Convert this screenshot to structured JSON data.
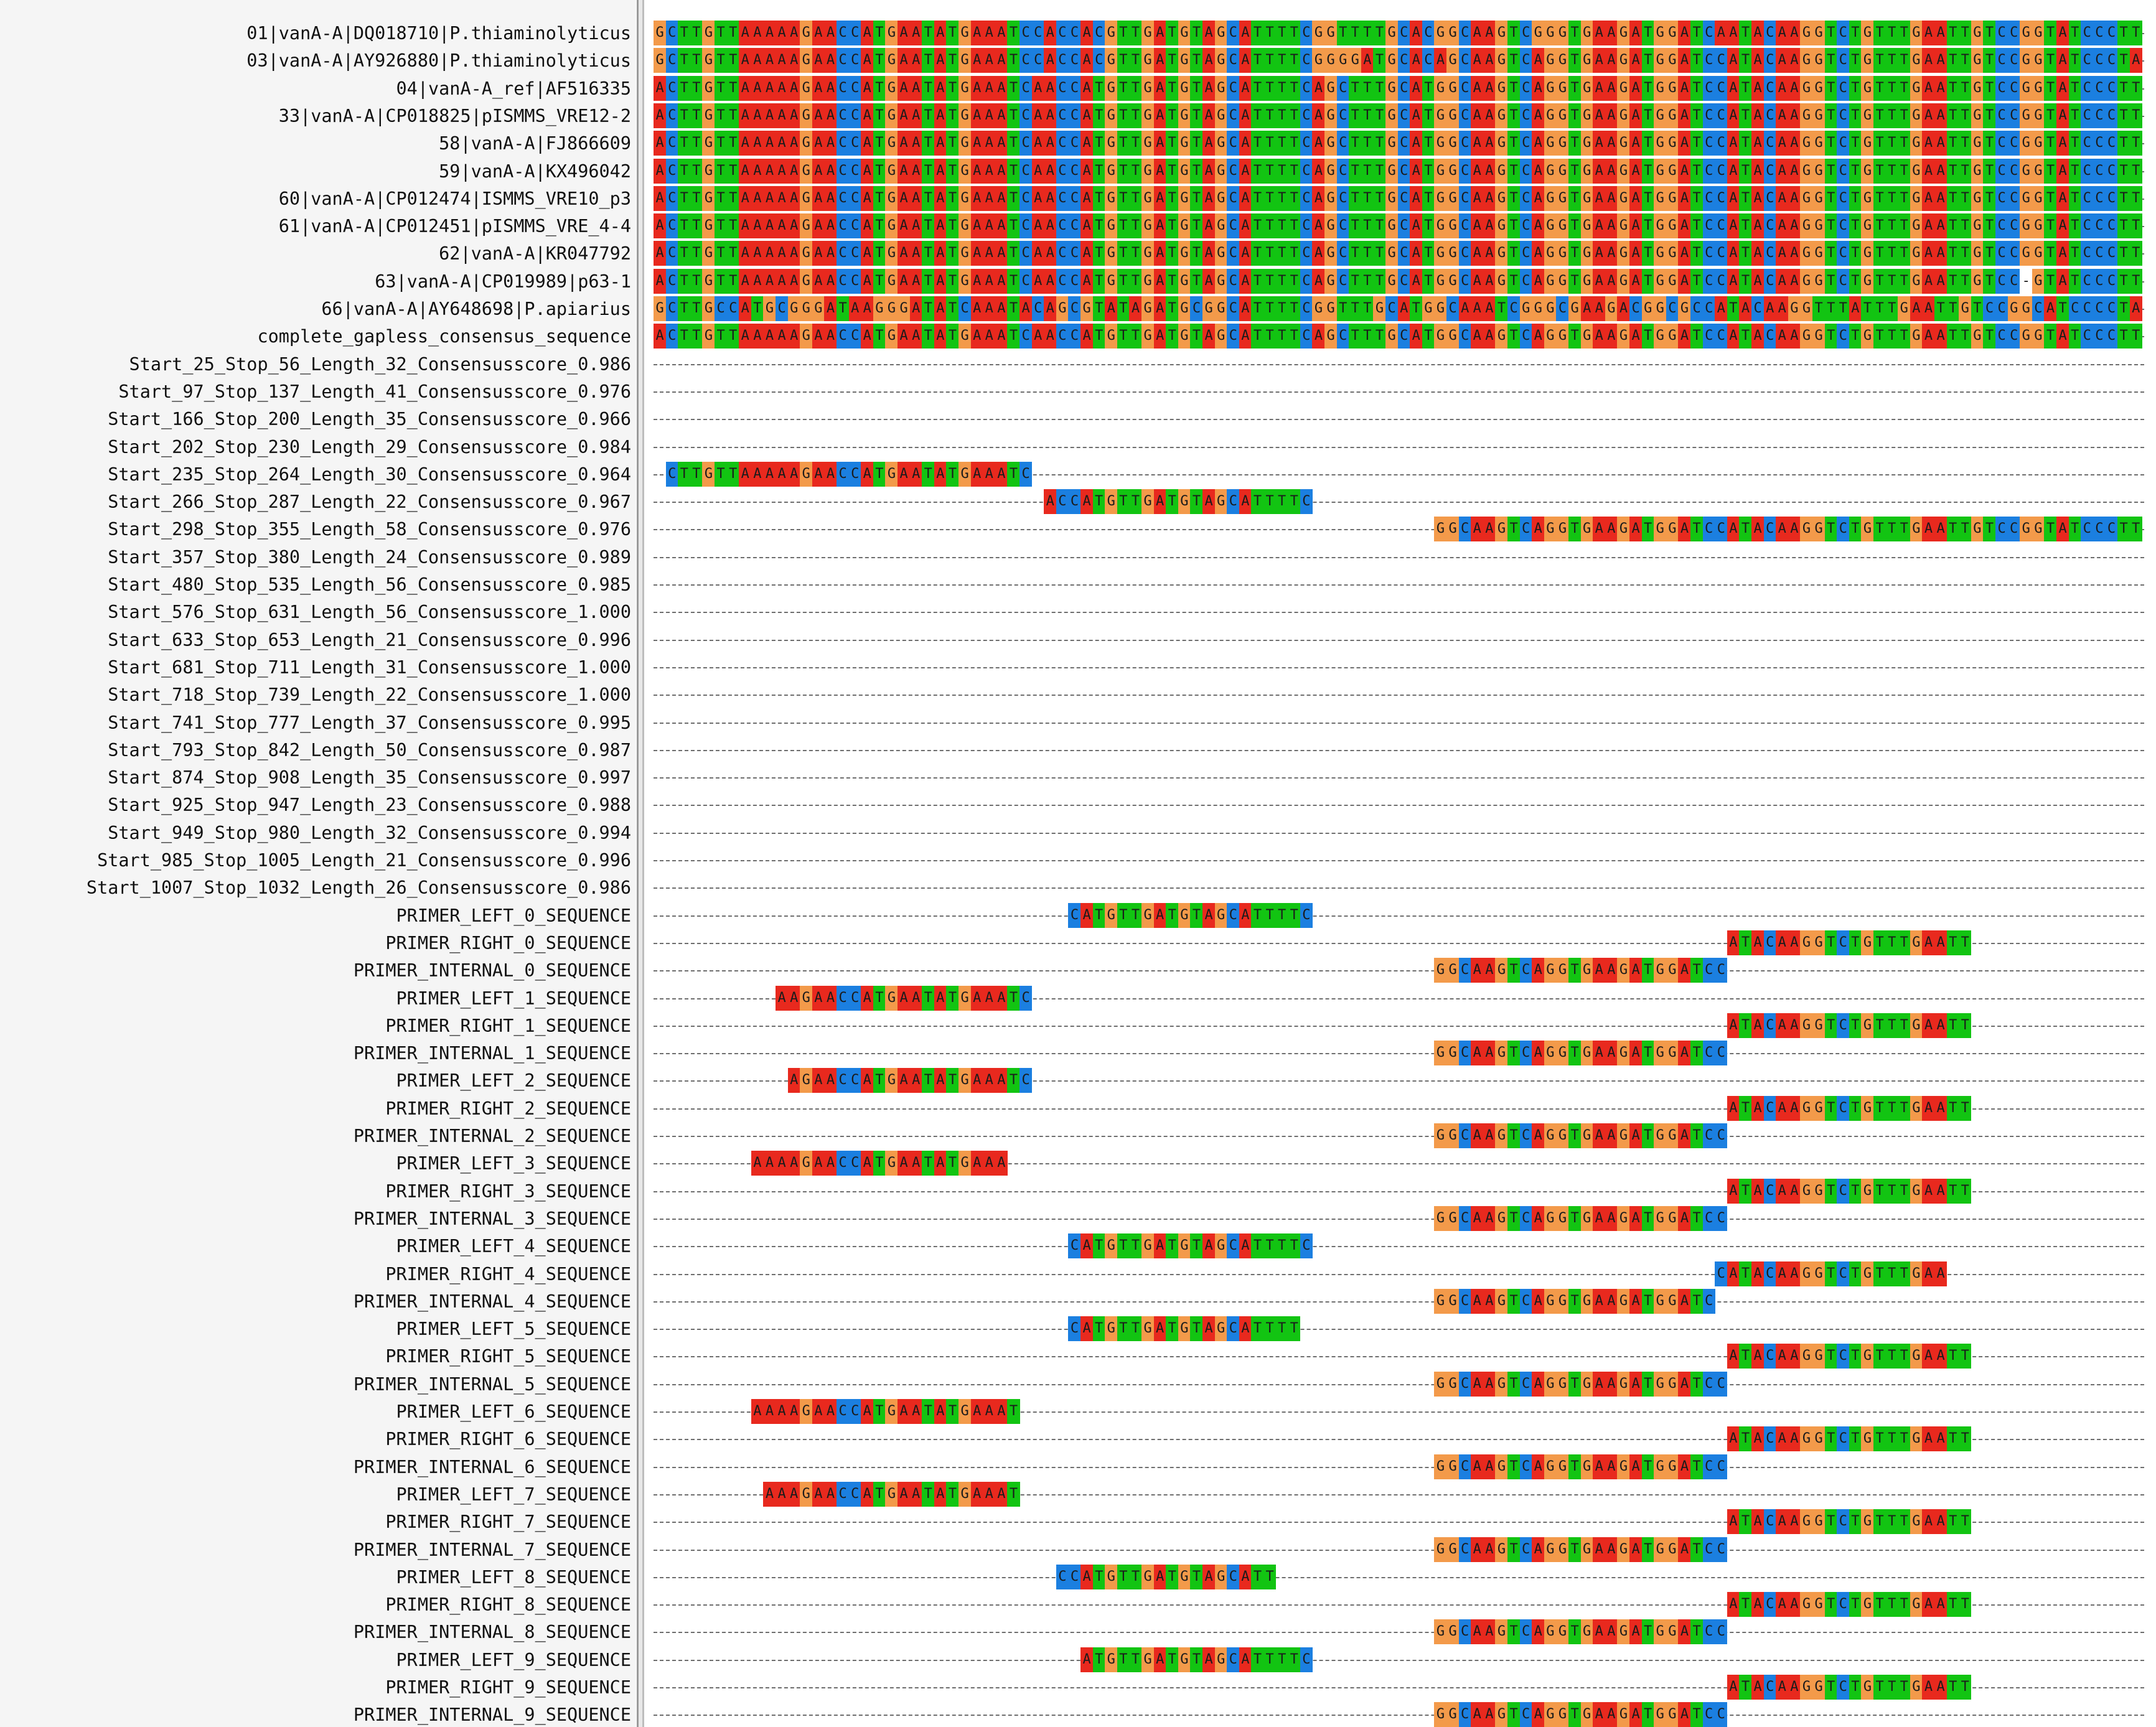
{
  "colors": {
    "A": "#e8291e",
    "C": "#1b7fe0",
    "G": "#f39a4a",
    "T": "#12c412",
    "gap": "#ffffff",
    "name_panel_bg": "#f5f5f5"
  },
  "alignment": {
    "total_columns": 123,
    "rows": [
      {
        "name": "01|vanA-A|DQ018710|P.thiaminolyticus",
        "start": 0,
        "seq": "GCTTGTTAAAAAGAACCATGAATATGAAATCCACCACGTTGATGTAGCATTTTCGGTTTTGCACGGCAAGTCGGGTGAAGATGGATCAATACAAGGTCTGTTTGAATTGTCCGGTATCCCTT"
      },
      {
        "name": "03|vanA-A|AY926880|P.thiaminolyticus",
        "start": 0,
        "seq": "GCTTGTTAAAAAGAACCATGAATATGAAATCCACCACGTTGATGTAGCATTTTCGGGGATGCACAGCAAGTCAGGTGAAGATGGATCCATACAAGGTCTGTTTGAATTGTCCGGTATCCCTA"
      },
      {
        "name": "04|vanA-A_ref|AF516335",
        "start": 0,
        "seq": "ACTTGTTAAAAAGAACCATGAATATGAAATCAACCATGTTGATGTAGCATTTTCAGCTTTGCATGGCAAGTCAGGTGAAGATGGATCCATACAAGGTCTGTTTGAATTGTCCGGTATCCCTT"
      },
      {
        "name": "33|vanA-A|CP018825|pISMMS_VRE12-2",
        "start": 0,
        "seq": "ACTTGTTAAAAAGAACCATGAATATGAAATCAACCATGTTGATGTAGCATTTTCAGCTTTGCATGGCAAGTCAGGTGAAGATGGATCCATACAAGGTCTGTTTGAATTGTCCGGTATCCCTT"
      },
      {
        "name": "58|vanA-A|FJ866609",
        "start": 0,
        "seq": "ACTTGTTAAAAAGAACCATGAATATGAAATCAACCATGTTGATGTAGCATTTTCAGCTTTGCATGGCAAGTCAGGTGAAGATGGATCCATACAAGGTCTGTTTGAATTGTCCGGTATCCCTT"
      },
      {
        "name": "59|vanA-A|KX496042",
        "start": 0,
        "seq": "ACTTGTTAAAAAGAACCATGAATATGAAATCAACCATGTTGATGTAGCATTTTCAGCTTTGCATGGCAAGTCAGGTGAAGATGGATCCATACAAGGTCTGTTTGAATTGTCCGGTATCCCTT"
      },
      {
        "name": "60|vanA-A|CP012474|ISMMS_VRE10_p3",
        "start": 0,
        "seq": "ACTTGTTAAAAAGAACCATGAATATGAAATCAACCATGTTGATGTAGCATTTTCAGCTTTGCATGGCAAGTCAGGTGAAGATGGATCCATACAAGGTCTGTTTGAATTGTCCGGTATCCCTT"
      },
      {
        "name": "61|vanA-A|CP012451|pISMMS_VRE_4-4",
        "start": 0,
        "seq": "ACTTGTTAAAAAGAACCATGAATATGAAATCAACCATGTTGATGTAGCATTTTCAGCTTTGCATGGCAAGTCAGGTGAAGATGGATCCATACAAGGTCTGTTTGAATTGTCCGGTATCCCTT"
      },
      {
        "name": "62|vanA-A|KR047792",
        "start": 0,
        "seq": "ACTTGTTAAAAAGAACCATGAATATGAAATCAACCATGTTGATGTAGCATTTTCAGCTTTGCATGGCAAGTCAGGTGAAGATGGATCCATACAAGGTCTGTTTGAATTGTCCGGTATCCCTT"
      },
      {
        "name": "63|vanA-A|CP019989|p63-1",
        "start": 0,
        "seq": "ACTTGTTAAAAAGAACCATGAATATGAAATCAACCATGTTGATGTAGCATTTTCAGCTTTGCATGGCAAGTCAGGTGAAGATGGATCCATACAAGGTCTGTTTGAATTGTCC-GTATCCCTT"
      },
      {
        "name": "66|vanA-A|AY648698|P.apiarius",
        "start": 0,
        "seq": "GCTTGCCATGCGGGATAAGGGATATCAAATACAGCGTATAGATGCGGCATTTTCGGTTTGCATGGCAAATCGGGCGAAGACGGCGCCATACAAGGTTTATTTGAATTGTCCGGCATCCCCTA"
      },
      {
        "name": "complete_gapless_consensus_sequence",
        "start": 0,
        "seq": "ACTTGTTAAAAAGAACCATGAATATGAAATCAACCATGTTGATGTAGCATTTTCAGCTTTGCATGGCAAGTCAGGTGAAGATGGATCCATACAAGGTCTGTTTGAATTGTCCGGTATCCCTT"
      },
      {
        "name": "Start_25_Stop_56_Length_32_Consensusscore_0.986",
        "start": 0,
        "seq": ""
      },
      {
        "name": "Start_97_Stop_137_Length_41_Consensusscore_0.976",
        "start": 0,
        "seq": ""
      },
      {
        "name": "Start_166_Stop_200_Length_35_Consensusscore_0.966",
        "start": 0,
        "seq": ""
      },
      {
        "name": "Start_202_Stop_230_Length_29_Consensusscore_0.984",
        "start": 0,
        "seq": ""
      },
      {
        "name": "Start_235_Stop_264_Length_30_Consensusscore_0.964",
        "start": 1,
        "seq": "CTTGTTAAAAAGAACCATGAATATGAAATC"
      },
      {
        "name": "Start_266_Stop_287_Length_22_Consensusscore_0.967",
        "start": 32,
        "seq": "ACCATGTTGATGTAGCATTTTC"
      },
      {
        "name": "Start_298_Stop_355_Length_58_Consensusscore_0.976",
        "start": 64,
        "seq": "GGCAAGTCAGGTGAAGATGGATCCATACAAGGTCTGTTTGAATTGTCCGGTATCCCTT"
      },
      {
        "name": "Start_357_Stop_380_Length_24_Consensusscore_0.989",
        "start": 0,
        "seq": ""
      },
      {
        "name": "Start_480_Stop_535_Length_56_Consensusscore_0.985",
        "start": 0,
        "seq": ""
      },
      {
        "name": "Start_576_Stop_631_Length_56_Consensusscore_1.000",
        "start": 0,
        "seq": ""
      },
      {
        "name": "Start_633_Stop_653_Length_21_Consensusscore_0.996",
        "start": 0,
        "seq": ""
      },
      {
        "name": "Start_681_Stop_711_Length_31_Consensusscore_1.000",
        "start": 0,
        "seq": ""
      },
      {
        "name": "Start_718_Stop_739_Length_22_Consensusscore_1.000",
        "start": 0,
        "seq": ""
      },
      {
        "name": "Start_741_Stop_777_Length_37_Consensusscore_0.995",
        "start": 0,
        "seq": ""
      },
      {
        "name": "Start_793_Stop_842_Length_50_Consensusscore_0.987",
        "start": 0,
        "seq": ""
      },
      {
        "name": "Start_874_Stop_908_Length_35_Consensusscore_0.997",
        "start": 0,
        "seq": ""
      },
      {
        "name": "Start_925_Stop_947_Length_23_Consensusscore_0.988",
        "start": 0,
        "seq": ""
      },
      {
        "name": "Start_949_Stop_980_Length_32_Consensusscore_0.994",
        "start": 0,
        "seq": ""
      },
      {
        "name": "Start_985_Stop_1005_Length_21_Consensusscore_0.996",
        "start": 0,
        "seq": ""
      },
      {
        "name": "Start_1007_Stop_1032_Length_26_Consensusscore_0.986",
        "start": 0,
        "seq": ""
      },
      {
        "name": "PRIMER_LEFT_0_SEQUENCE",
        "start": 34,
        "seq": "CATGTTGATGTAGCATTTTC"
      },
      {
        "name": "PRIMER_RIGHT_0_SEQUENCE",
        "start": 88,
        "seq": "ATACAAGGTCTGTTTGAATT"
      },
      {
        "name": "PRIMER_INTERNAL_0_SEQUENCE",
        "start": 64,
        "seq": "GGCAAGTCAGGTGAAGATGGATCC"
      },
      {
        "name": "PRIMER_LEFT_1_SEQUENCE",
        "start": 10,
        "seq": "AAGAACCATGAATATGAAATC"
      },
      {
        "name": "PRIMER_RIGHT_1_SEQUENCE",
        "start": 88,
        "seq": "ATACAAGGTCTGTTTGAATT"
      },
      {
        "name": "PRIMER_INTERNAL_1_SEQUENCE",
        "start": 64,
        "seq": "GGCAAGTCAGGTGAAGATGGATCC"
      },
      {
        "name": "PRIMER_LEFT_2_SEQUENCE",
        "start": 11,
        "seq": "AGAACCATGAATATGAAATC"
      },
      {
        "name": "PRIMER_RIGHT_2_SEQUENCE",
        "start": 88,
        "seq": "ATACAAGGTCTGTTTGAATT"
      },
      {
        "name": "PRIMER_INTERNAL_2_SEQUENCE",
        "start": 64,
        "seq": "GGCAAGTCAGGTGAAGATGGATCC"
      },
      {
        "name": "PRIMER_LEFT_3_SEQUENCE",
        "start": 8,
        "seq": "AAAAGAACCATGAATATGAAA"
      },
      {
        "name": "PRIMER_RIGHT_3_SEQUENCE",
        "start": 88,
        "seq": "ATACAAGGTCTGTTTGAATT"
      },
      {
        "name": "PRIMER_INTERNAL_3_SEQUENCE",
        "start": 64,
        "seq": "GGCAAGTCAGGTGAAGATGGATCC"
      },
      {
        "name": "PRIMER_LEFT_4_SEQUENCE",
        "start": 34,
        "seq": "CATGTTGATGTAGCATTTTC"
      },
      {
        "name": "PRIMER_RIGHT_4_SEQUENCE",
        "start": 87,
        "seq": "CATACAAGGTCTGTTTGAA"
      },
      {
        "name": "PRIMER_INTERNAL_4_SEQUENCE",
        "start": 64,
        "seq": "GGCAAGTCAGGTGAAGATGGATC"
      },
      {
        "name": "PRIMER_LEFT_5_SEQUENCE",
        "start": 34,
        "seq": "CATGTTGATGTAGCATTTT"
      },
      {
        "name": "PRIMER_RIGHT_5_SEQUENCE",
        "start": 88,
        "seq": "ATACAAGGTCTGTTTGAATT"
      },
      {
        "name": "PRIMER_INTERNAL_5_SEQUENCE",
        "start": 64,
        "seq": "GGCAAGTCAGGTGAAGATGGATCC"
      },
      {
        "name": "PRIMER_LEFT_6_SEQUENCE",
        "start": 8,
        "seq": "AAAAGAACCATGAATATGAAAT"
      },
      {
        "name": "PRIMER_RIGHT_6_SEQUENCE",
        "start": 88,
        "seq": "ATACAAGGTCTGTTTGAATT"
      },
      {
        "name": "PRIMER_INTERNAL_6_SEQUENCE",
        "start": 64,
        "seq": "GGCAAGTCAGGTGAAGATGGATCC"
      },
      {
        "name": "PRIMER_LEFT_7_SEQUENCE",
        "start": 9,
        "seq": "AAAGAACCATGAATATGAAAT"
      },
      {
        "name": "PRIMER_RIGHT_7_SEQUENCE",
        "start": 88,
        "seq": "ATACAAGGTCTGTTTGAATT"
      },
      {
        "name": "PRIMER_INTERNAL_7_SEQUENCE",
        "start": 64,
        "seq": "GGCAAGTCAGGTGAAGATGGATCC"
      },
      {
        "name": "PRIMER_LEFT_8_SEQUENCE",
        "start": 33,
        "seq": "CCATGTTGATGTAGCATT"
      },
      {
        "name": "PRIMER_RIGHT_8_SEQUENCE",
        "start": 88,
        "seq": "ATACAAGGTCTGTTTGAATT"
      },
      {
        "name": "PRIMER_INTERNAL_8_SEQUENCE",
        "start": 64,
        "seq": "GGCAAGTCAGGTGAAGATGGATCC"
      },
      {
        "name": "PRIMER_LEFT_9_SEQUENCE",
        "start": 35,
        "seq": "ATGTTGATGTAGCATTTTC"
      },
      {
        "name": "PRIMER_RIGHT_9_SEQUENCE",
        "start": 88,
        "seq": "ATACAAGGTCTGTTTGAATT"
      },
      {
        "name": "PRIMER_INTERNAL_9_SEQUENCE",
        "start": 64,
        "seq": "GGCAAGTCAGGTGAAGATGGATCC"
      }
    ]
  }
}
